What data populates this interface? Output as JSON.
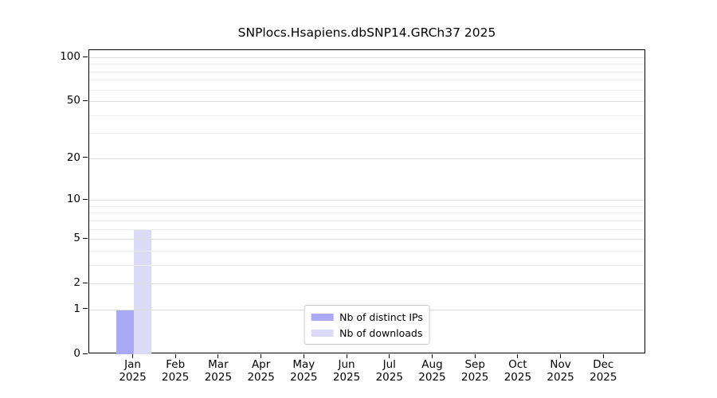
{
  "chart_data": {
    "type": "bar",
    "title": "SNPlocs.Hsapiens.dbSNP14.GRCh37 2025",
    "categories": [
      "Jan",
      "Feb",
      "Mar",
      "Apr",
      "May",
      "Jun",
      "Jul",
      "Aug",
      "Sep",
      "Oct",
      "Nov",
      "Dec"
    ],
    "category_year_label": "2025",
    "series": [
      {
        "name": "Nb of distinct IPs",
        "color": "#a9a9f4",
        "values": [
          1,
          0,
          0,
          0,
          0,
          0,
          0,
          0,
          0,
          0,
          0,
          0
        ]
      },
      {
        "name": "Nb of downloads",
        "color": "#dbdbf8",
        "values": [
          6,
          0,
          0,
          0,
          0,
          0,
          0,
          0,
          0,
          0,
          0,
          0
        ]
      }
    ],
    "scale": "log1p",
    "ylim": [
      0,
      111
    ],
    "y_ticks": [
      0,
      1,
      2,
      5,
      10,
      20,
      50,
      100
    ],
    "grid_values": [
      1,
      2,
      3,
      4,
      5,
      6,
      7,
      8,
      9,
      10,
      20,
      30,
      40,
      50,
      60,
      70,
      80,
      90,
      100
    ],
    "grid": true,
    "legend_position": "lower center",
    "colors": {
      "axis": "#000000",
      "text": "#000000",
      "major_grid": "#dcdcdc",
      "minor_grid": "#ebebeb",
      "legend_border": "#c9c9c9"
    }
  }
}
